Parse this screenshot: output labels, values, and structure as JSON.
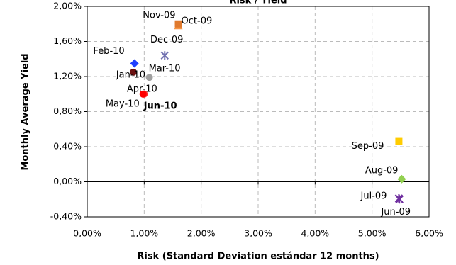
{
  "chart_data": {
    "type": "scatter",
    "title": "Risk / Yield",
    "xlabel": "Risk (Standard Deviation estándar 12 months)",
    "ylabel": "Monthly Average Yield",
    "xlim": [
      0,
      6
    ],
    "xticks": [
      {
        "value": 0,
        "label": "0,00%"
      },
      {
        "value": 1,
        "label": "1,00%"
      },
      {
        "value": 2,
        "label": "2,00%"
      },
      {
        "value": 3,
        "label": "3,00%"
      },
      {
        "value": 4,
        "label": "4,00%"
      },
      {
        "value": 5,
        "label": "5,00%"
      },
      {
        "value": 6,
        "label": "6,00%"
      }
    ],
    "ylim": [
      -0.4,
      2.0
    ],
    "yticks": [
      {
        "value": -0.4,
        "label": "-0,40%"
      },
      {
        "value": 0,
        "label": "0,00%"
      },
      {
        "value": 0.4,
        "label": "0,40%"
      },
      {
        "value": 0.8,
        "label": "0,80%"
      },
      {
        "value": 1.2,
        "label": "1,20%"
      },
      {
        "value": 1.6,
        "label": "1,60%"
      },
      {
        "value": 2.0,
        "label": "2,00%"
      }
    ],
    "grid": true,
    "series": [
      {
        "name": "Jun-09",
        "color": "#7030a0",
        "marker": "star",
        "x": [
          5.48
        ],
        "values": [
          -0.2
        ]
      },
      {
        "name": "Jul-09",
        "color": "#7030a0",
        "marker": "star",
        "x": [
          5.47
        ],
        "values": [
          -0.19
        ]
      },
      {
        "name": "Aug-09",
        "color": "#92d050",
        "marker": "diamond",
        "x": [
          5.52
        ],
        "values": [
          0.03
        ]
      },
      {
        "name": "Sep-09",
        "color": "#ffcc00",
        "marker": "square",
        "x": [
          5.47
        ],
        "values": [
          0.46
        ]
      },
      {
        "name": "Oct-09",
        "color": "#f79646",
        "marker": "triangle",
        "x": [
          1.6
        ],
        "values": [
          1.78
        ]
      },
      {
        "name": "Nov-09",
        "color": "#e07a2e",
        "marker": "square",
        "x": [
          1.6
        ],
        "values": [
          1.8
        ]
      },
      {
        "name": "Dec-09",
        "color": "#7070b0",
        "marker": "star",
        "x": [
          1.36
        ],
        "values": [
          1.44
        ]
      },
      {
        "name": "Jan-10",
        "color": "#6b0f0f",
        "marker": "circle",
        "x": [
          0.81
        ],
        "values": [
          1.25
        ]
      },
      {
        "name": "Feb-10",
        "color": "#1f3fff",
        "marker": "diamond",
        "x": [
          0.83
        ],
        "values": [
          1.35
        ]
      },
      {
        "name": "Mar-10",
        "color": "#a0a0a0",
        "marker": "circle",
        "x": [
          1.09
        ],
        "values": [
          1.19
        ]
      },
      {
        "name": "Apr-10",
        "color": "#ff3030",
        "marker": "circle",
        "x": [
          1.0
        ],
        "values": [
          1.0
        ]
      },
      {
        "name": "May-10",
        "color": "#ff2020",
        "marker": "circle",
        "x": [
          0.98
        ],
        "values": [
          1.0
        ]
      },
      {
        "name": "Jun-10",
        "color": "#ff0000",
        "marker": "circle",
        "x": [
          0.98
        ],
        "values": [
          1.0
        ]
      }
    ]
  }
}
